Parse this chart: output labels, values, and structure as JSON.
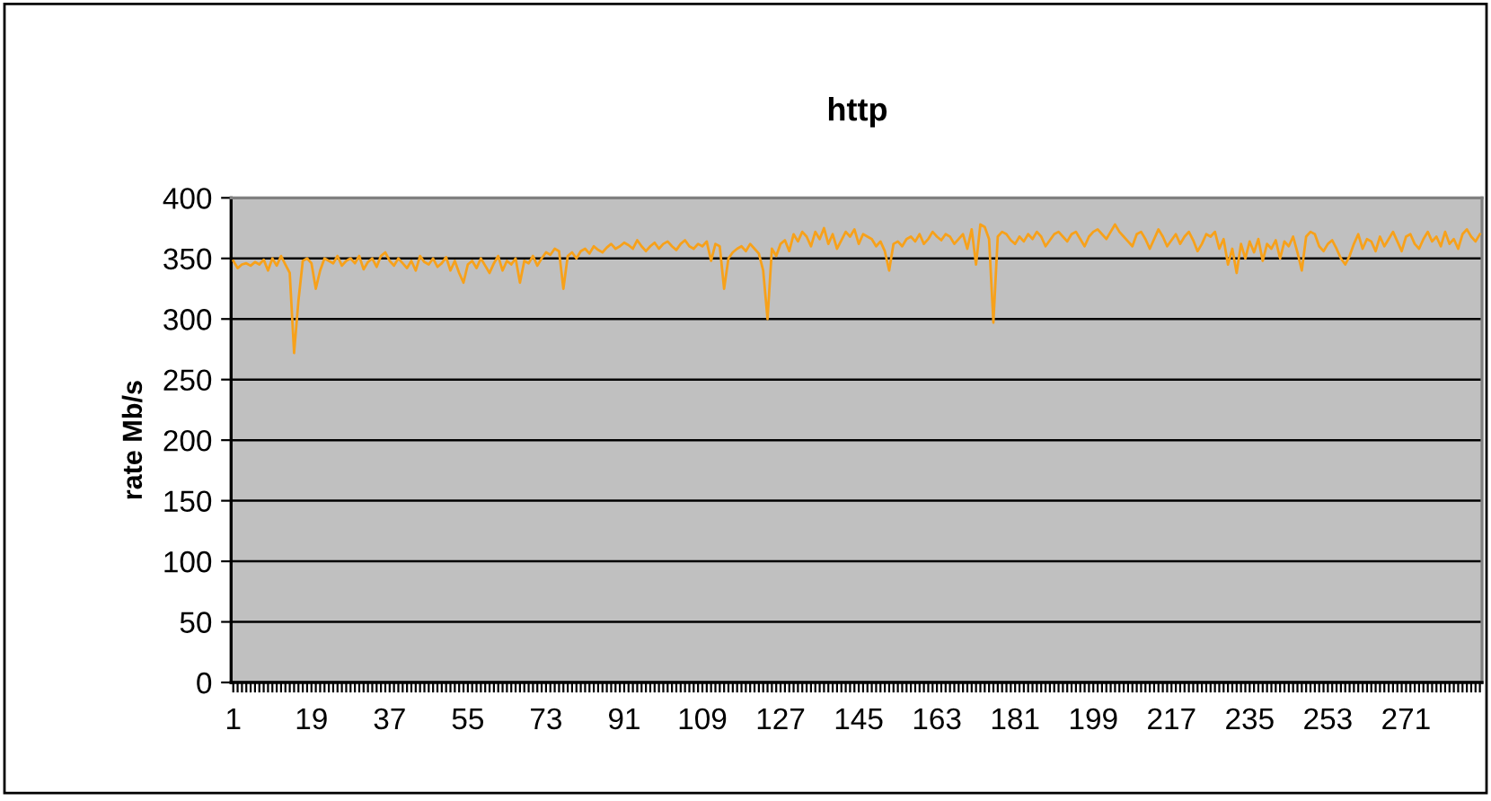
{
  "chart_data": {
    "type": "line",
    "title": "http",
    "ylabel": "rate Mb/s",
    "categories": [
      "1",
      null,
      null,
      null,
      null,
      null,
      null,
      null,
      null,
      null,
      null,
      null,
      null,
      null,
      null,
      null,
      null,
      null,
      "19",
      null,
      null,
      null,
      null,
      null,
      null,
      null,
      null,
      null,
      null,
      null,
      null,
      null,
      null,
      null,
      null,
      null,
      "37",
      null,
      null,
      null,
      null,
      null,
      null,
      null,
      null,
      null,
      null,
      null,
      null,
      null,
      null,
      null,
      null,
      null,
      "55",
      null,
      null,
      null,
      null,
      null,
      null,
      null,
      null,
      null,
      null,
      null,
      null,
      null,
      null,
      null,
      null,
      null,
      "73",
      null,
      null,
      null,
      null,
      null,
      null,
      null,
      null,
      null,
      null,
      null,
      null,
      null,
      null,
      null,
      null,
      null,
      "91",
      null,
      null,
      null,
      null,
      null,
      null,
      null,
      null,
      null,
      null,
      null,
      null,
      null,
      null,
      null,
      null,
      null,
      "109",
      null,
      null,
      null,
      null,
      null,
      null,
      null,
      null,
      null,
      null,
      null,
      null,
      null,
      null,
      null,
      null,
      null,
      "127",
      null,
      null,
      null,
      null,
      null,
      null,
      null,
      null,
      null,
      null,
      null,
      null,
      null,
      null,
      null,
      null,
      null,
      "145",
      null,
      null,
      null,
      null,
      null,
      null,
      null,
      null,
      null,
      null,
      null,
      null,
      null,
      null,
      null,
      null,
      null,
      "163",
      null,
      null,
      null,
      null,
      null,
      null,
      null,
      null,
      null,
      null,
      null,
      null,
      null,
      null,
      null,
      null,
      null,
      "181",
      null,
      null,
      null,
      null,
      null,
      null,
      null,
      null,
      null,
      null,
      null,
      null,
      null,
      null,
      null,
      null,
      null,
      "199",
      null,
      null,
      null,
      null,
      null,
      null,
      null,
      null,
      null,
      null,
      null,
      null,
      null,
      null,
      null,
      null,
      null,
      "217",
      null,
      null,
      null,
      null,
      null,
      null,
      null,
      null,
      null,
      null,
      null,
      null,
      null,
      null,
      null,
      null,
      null,
      "235",
      null,
      null,
      null,
      null,
      null,
      null,
      null,
      null,
      null,
      null,
      null,
      null,
      null,
      null,
      null,
      null,
      null,
      "253",
      null,
      null,
      null,
      null,
      null,
      null,
      null,
      null,
      null,
      null,
      null,
      null,
      null,
      null,
      null,
      null,
      null,
      "271",
      null,
      null,
      null,
      null,
      null,
      null,
      null,
      null,
      null,
      null,
      null,
      null,
      null,
      null,
      null,
      null,
      null
    ],
    "series": [
      {
        "color": "#f7a11a",
        "values": [
          348,
          342,
          345,
          346,
          344,
          347,
          345,
          349,
          340,
          350,
          344,
          352,
          345,
          338,
          272,
          315,
          348,
          350,
          346,
          325,
          340,
          350,
          348,
          346,
          352,
          344,
          348,
          350,
          346,
          352,
          341,
          347,
          350,
          343,
          352,
          355,
          348,
          344,
          350,
          346,
          342,
          348,
          340,
          352,
          347,
          345,
          350,
          343,
          346,
          351,
          340,
          348,
          338,
          330,
          345,
          348,
          342,
          350,
          344,
          338,
          346,
          352,
          340,
          348,
          345,
          350,
          330,
          348,
          346,
          352,
          344,
          350,
          355,
          353,
          358,
          356,
          325,
          352,
          355,
          350,
          356,
          358,
          354,
          360,
          357,
          355,
          359,
          362,
          358,
          360,
          363,
          361,
          358,
          365,
          360,
          356,
          360,
          363,
          358,
          362,
          364,
          360,
          357,
          362,
          365,
          360,
          358,
          362,
          360,
          364,
          348,
          362,
          360,
          325,
          350,
          355,
          358,
          360,
          356,
          362,
          358,
          354,
          340,
          300,
          358,
          352,
          362,
          365,
          356,
          370,
          364,
          372,
          368,
          360,
          372,
          366,
          375,
          362,
          370,
          358,
          365,
          372,
          368,
          374,
          362,
          370,
          368,
          366,
          360,
          364,
          356,
          340,
          362,
          364,
          360,
          366,
          368,
          364,
          370,
          362,
          366,
          372,
          368,
          365,
          370,
          368,
          362,
          366,
          370,
          358,
          374,
          345,
          378,
          376,
          366,
          297,
          368,
          372,
          370,
          365,
          362,
          368,
          364,
          370,
          366,
          372,
          368,
          360,
          365,
          370,
          372,
          368,
          364,
          370,
          372,
          366,
          360,
          368,
          372,
          374,
          370,
          366,
          372,
          378,
          372,
          368,
          364,
          360,
          370,
          372,
          366,
          358,
          366,
          374,
          368,
          360,
          365,
          370,
          362,
          368,
          372,
          365,
          356,
          362,
          370,
          368,
          372,
          358,
          366,
          345,
          358,
          338,
          362,
          350,
          364,
          355,
          366,
          348,
          362,
          358,
          365,
          350,
          364,
          360,
          368,
          355,
          340,
          368,
          372,
          370,
          360,
          356,
          362,
          365,
          358,
          350,
          345,
          352,
          362,
          370,
          358,
          366,
          364,
          356,
          368,
          360,
          366,
          372,
          364,
          356,
          368,
          370,
          362,
          358,
          366,
          372,
          364,
          368,
          360,
          372,
          362,
          366,
          358,
          370,
          374,
          368,
          364,
          370
        ]
      }
    ],
    "ylim": [
      0,
      400
    ],
    "yticks": [
      0,
      50,
      100,
      150,
      200,
      250,
      300,
      350,
      400
    ],
    "grid": "y",
    "marker": "none",
    "line_style": "solid"
  }
}
